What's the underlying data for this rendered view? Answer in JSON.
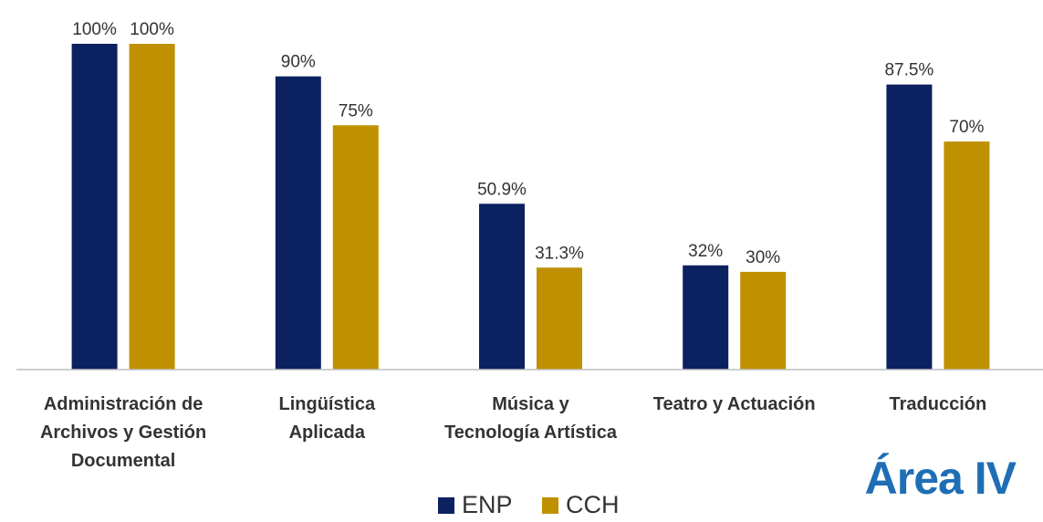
{
  "chart_data": {
    "type": "bar",
    "categories": [
      "Administración de\nArchivos y Gestión\nDocumental",
      "Lingüística\nAplicada",
      "Música y\nTecnología Artística",
      "Teatro y Actuación",
      "Traducción"
    ],
    "series": [
      {
        "name": "ENP",
        "color": "#0b2160",
        "values": [
          100,
          90,
          50.9,
          32,
          87.5
        ],
        "value_labels": [
          "100%",
          "90%",
          "50.9%",
          "32%",
          "87.5%"
        ]
      },
      {
        "name": "CCH",
        "color": "#bf9000",
        "values": [
          100,
          75,
          31.3,
          30,
          70
        ],
        "value_labels": [
          "100%",
          "75%",
          "31.3%",
          "30%",
          "70%"
        ]
      }
    ],
    "ylim": [
      0,
      100
    ],
    "annotation": "Área IV"
  }
}
